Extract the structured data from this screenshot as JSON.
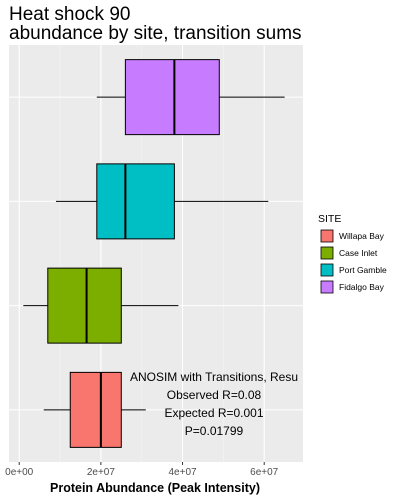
{
  "chart_data": {
    "type": "boxplot",
    "title": [
      "Heat shock 90",
      "abundance by site, transition sums"
    ],
    "xlabel": "Protein Abundance (Peak Intensity)",
    "ylabel": "",
    "orientation": "horizontal",
    "xlim": [
      -2500000,
      69500000
    ],
    "xticks": [
      {
        "value": 0,
        "label": "0e+00"
      },
      {
        "value": 20000000,
        "label": "2e+07"
      },
      {
        "value": 40000000,
        "label": "4e+07"
      },
      {
        "value": 60000000,
        "label": "6e+07"
      }
    ],
    "grid": true,
    "legend": {
      "title": "SITE",
      "position": "right"
    },
    "series": [
      {
        "name": "Willapa Bay",
        "color": "#F8766D",
        "min": 6000000,
        "q1": 12500000,
        "median": 20000000,
        "q3": 25000000,
        "max": 31000000
      },
      {
        "name": "Case Inlet",
        "color": "#7CAE00",
        "min": 1000000,
        "q1": 7000000,
        "median": 16500000,
        "q3": 25000000,
        "max": 39000000
      },
      {
        "name": "Port Gamble",
        "color": "#00BFC4",
        "min": 9000000,
        "q1": 19000000,
        "median": 26000000,
        "q3": 38000000,
        "max": 61000000
      },
      {
        "name": "Fidalgo Bay",
        "color": "#C77CFF",
        "min": 19000000,
        "q1": 26000000,
        "median": 38000000,
        "q3": 49000000,
        "max": 65000000
      }
    ],
    "annotations": [
      "ANOSIM with Transitions, Resu",
      "Observed R=0.08",
      "Expected R=0.001",
      "P=0.01799"
    ]
  }
}
